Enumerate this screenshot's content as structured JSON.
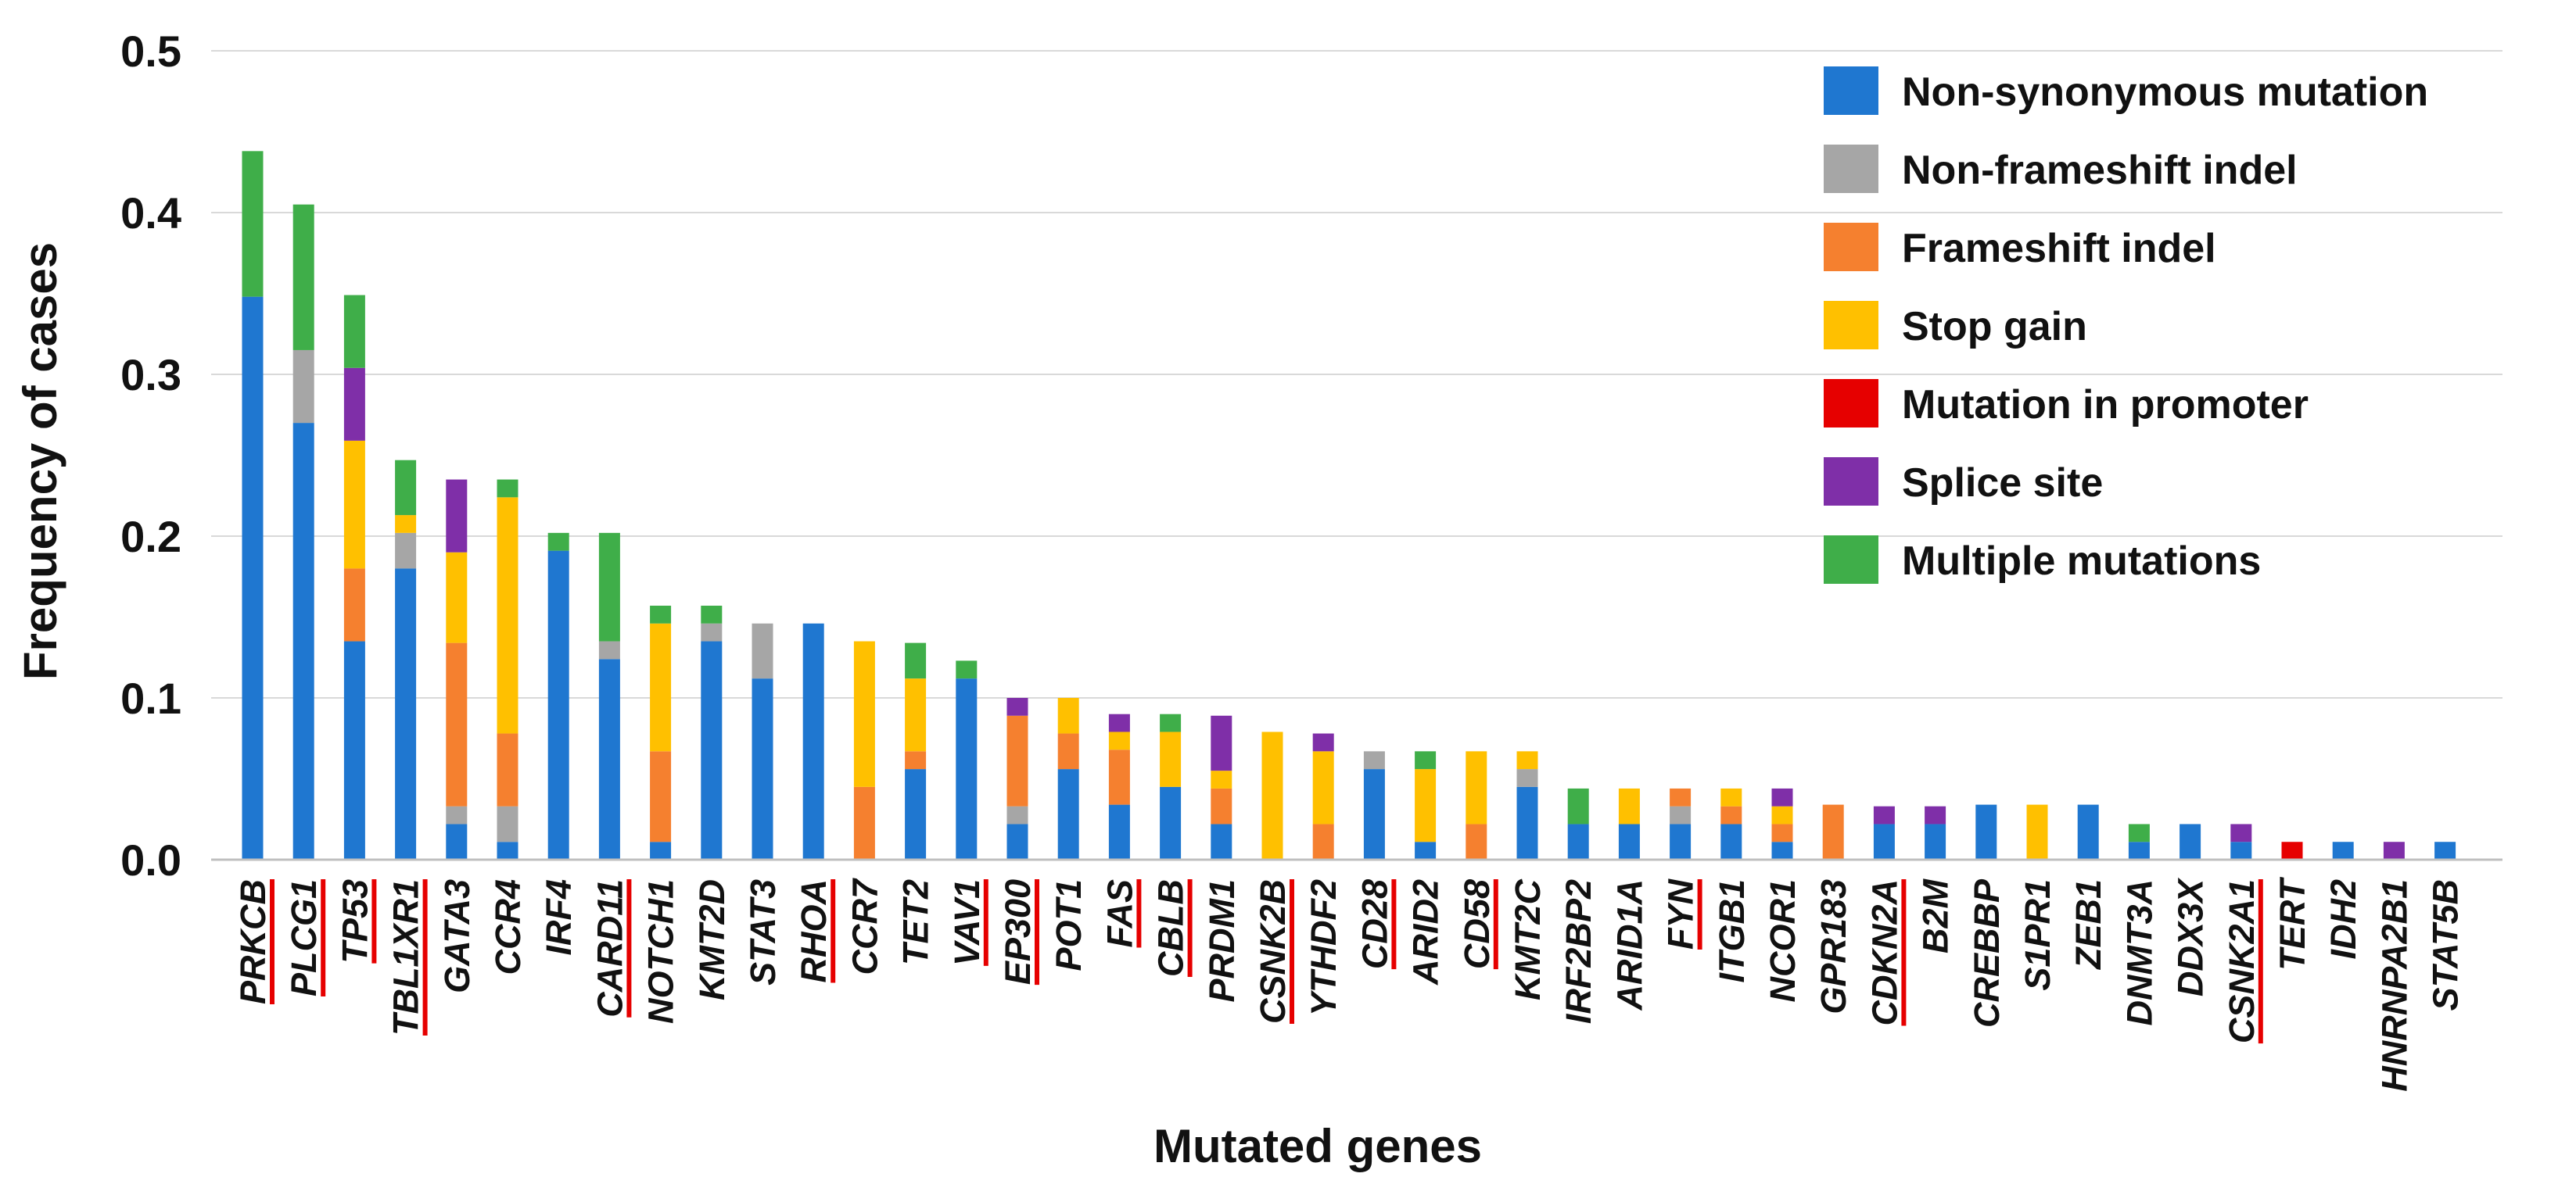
{
  "chart_data": {
    "type": "bar",
    "stacked": true,
    "xlabel": "Mutated genes",
    "ylabel": "Frequency of cases",
    "ylim": [
      0,
      0.5
    ],
    "yticks": [
      "0.0",
      "0.1",
      "0.2",
      "0.3",
      "0.4",
      "0.5"
    ],
    "grid": "horizontal",
    "legend_position": "top-right",
    "categories": [
      "PRKCB",
      "PLCG1",
      "TP53",
      "TBL1XR1",
      "GATA3",
      "CCR4",
      "IRF4",
      "CARD11",
      "NOTCH1",
      "KMT2D",
      "STAT3",
      "RHOA",
      "CCR7",
      "TET2",
      "VAV1",
      "EP300",
      "POT1",
      "FAS",
      "CBLB",
      "PRDM1",
      "CSNK2B",
      "YTHDF2",
      "CD28",
      "ARID2",
      "CD58",
      "KMT2C",
      "IRF2BP2",
      "ARID1A",
      "FYN",
      "ITGB1",
      "NCOR1",
      "GPR183",
      "CDKN2A",
      "B2M",
      "CREBBP",
      "S1PR1",
      "ZEB1",
      "DNMT3A",
      "DDX3X",
      "CSNK2A1",
      "TERT",
      "IDH2",
      "HNRNPA2B1",
      "STAT5B"
    ],
    "underlined_categories": [
      "PRKCB",
      "PLCG1",
      "TP53",
      "TBL1XR1",
      "CARD11",
      "RHOA",
      "VAV1",
      "EP300",
      "FAS",
      "CBLB",
      "CSNK2B",
      "CD28",
      "CD58",
      "FYN",
      "CDKN2A",
      "CSNK2A1"
    ],
    "series": [
      {
        "name": "Non-synonymous mutation",
        "color": "#1f77d0",
        "values": [
          0.348,
          0.27,
          0.135,
          0.18,
          0.022,
          0.011,
          0.191,
          0.124,
          0.011,
          0.135,
          0.112,
          0.146,
          0,
          0.056,
          0.112,
          0.022,
          0.056,
          0.034,
          0.045,
          0.022,
          0,
          0,
          0.056,
          0.011,
          0,
          0.045,
          0.022,
          0.022,
          0.022,
          0.022,
          0.011,
          0,
          0.022,
          0.022,
          0.034,
          0,
          0.034,
          0.011,
          0.022,
          0.011,
          0,
          0.011,
          0,
          0.011
        ]
      },
      {
        "name": "Non-frameshift indel",
        "color": "#a6a6a6",
        "values": [
          0,
          0.045,
          0,
          0.022,
          0.011,
          0.022,
          0,
          0.011,
          0,
          0.011,
          0.034,
          0,
          0,
          0,
          0,
          0.011,
          0,
          0,
          0,
          0,
          0,
          0,
          0.011,
          0,
          0,
          0.011,
          0,
          0,
          0.011,
          0,
          0,
          0,
          0,
          0,
          0,
          0,
          0,
          0,
          0,
          0,
          0,
          0,
          0,
          0
        ]
      },
      {
        "name": "Frameshift indel",
        "color": "#f5802f",
        "values": [
          0,
          0,
          0.045,
          0,
          0.101,
          0.045,
          0,
          0,
          0.056,
          0,
          0,
          0,
          0.045,
          0.011,
          0,
          0.056,
          0.022,
          0.034,
          0,
          0.022,
          0,
          0.022,
          0,
          0,
          0.022,
          0,
          0,
          0,
          0.011,
          0.011,
          0.011,
          0.034,
          0,
          0,
          0,
          0,
          0,
          0,
          0,
          0,
          0,
          0,
          0,
          0
        ]
      },
      {
        "name": "Stop gain",
        "color": "#ffc000",
        "values": [
          0,
          0,
          0.079,
          0.011,
          0.056,
          0.146,
          0,
          0,
          0.079,
          0,
          0,
          0,
          0.09,
          0.045,
          0,
          0,
          0.022,
          0.011,
          0.034,
          0.011,
          0.079,
          0.045,
          0,
          0.045,
          0.045,
          0.011,
          0,
          0.022,
          0,
          0.011,
          0.011,
          0,
          0,
          0,
          0,
          0.034,
          0,
          0,
          0,
          0,
          0,
          0,
          0,
          0
        ]
      },
      {
        "name": "Mutation in promoter",
        "color": "#e60000",
        "values": [
          0,
          0,
          0,
          0,
          0,
          0,
          0,
          0,
          0,
          0,
          0,
          0,
          0,
          0,
          0,
          0,
          0,
          0,
          0,
          0,
          0,
          0,
          0,
          0,
          0,
          0,
          0,
          0,
          0,
          0,
          0,
          0,
          0,
          0,
          0,
          0,
          0,
          0,
          0,
          0,
          0.011,
          0,
          0,
          0
        ]
      },
      {
        "name": "Splice site",
        "color": "#7f2fa8",
        "values": [
          0,
          0,
          0.045,
          0,
          0.045,
          0,
          0,
          0,
          0,
          0,
          0,
          0,
          0,
          0,
          0,
          0.011,
          0,
          0.011,
          0,
          0.034,
          0,
          0.011,
          0,
          0,
          0,
          0,
          0,
          0,
          0,
          0,
          0.011,
          0,
          0.011,
          0.011,
          0,
          0,
          0,
          0,
          0,
          0.011,
          0,
          0,
          0.011,
          0
        ]
      },
      {
        "name": "Multiple mutations",
        "color": "#3fae49",
        "values": [
          0.09,
          0.09,
          0.045,
          0.034,
          0,
          0.011,
          0.011,
          0.067,
          0.011,
          0.011,
          0,
          0,
          0,
          0.022,
          0.011,
          0,
          0,
          0,
          0.011,
          0,
          0,
          0,
          0,
          0.011,
          0,
          0,
          0.022,
          0,
          0,
          0,
          0,
          0,
          0,
          0,
          0,
          0,
          0,
          0.011,
          0,
          0,
          0,
          0,
          0,
          0
        ]
      }
    ]
  }
}
